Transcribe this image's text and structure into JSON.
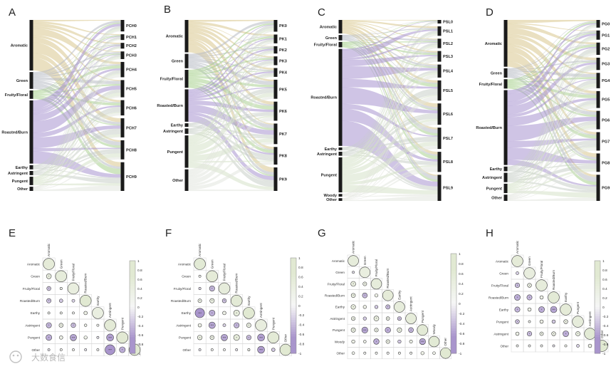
{
  "colors": {
    "aromatic": "#d8c78e",
    "green": "#b8bcc4",
    "fruity": "#a9d28f",
    "roasted": "#a893cf",
    "earthy": "#c9cfc9",
    "pungent": "#d6e2c9",
    "other": "#e2e6df",
    "bar": "#1a1a1a",
    "positive": "#e1e9d2",
    "negative": "#a995cc",
    "neutral": "#f4f4f4",
    "outline": "#444444"
  },
  "watermark": "大数食信",
  "chart_data": [
    {
      "panel": "A",
      "type": "sankey",
      "title": "A",
      "sources": [
        {
          "label": "Aromatic",
          "value": 24,
          "color": "aromatic"
        },
        {
          "label": "Green",
          "value": 8,
          "color": "green"
        },
        {
          "label": "Fruity/Floral",
          "value": 4,
          "color": "fruity"
        },
        {
          "label": "Roasted/Burn",
          "value": 30,
          "color": "roasted"
        },
        {
          "label": "Earthy",
          "value": 2,
          "color": "earthy"
        },
        {
          "label": "Astringent",
          "value": 2,
          "color": "earthy"
        },
        {
          "label": "Pungent",
          "value": 4,
          "color": "pungent"
        },
        {
          "label": "Other",
          "value": 2,
          "color": "other"
        }
      ],
      "targets": [
        {
          "label": "PCH0",
          "value": 6
        },
        {
          "label": "PCH1",
          "value": 3
        },
        {
          "label": "PCH2",
          "value": 3
        },
        {
          "label": "PCH3",
          "value": 4
        },
        {
          "label": "PCH4",
          "value": 8
        },
        {
          "label": "PCH5",
          "value": 9
        },
        {
          "label": "PCH6",
          "value": 8
        },
        {
          "label": "PCH7",
          "value": 10
        },
        {
          "label": "PCH8",
          "value": 10
        },
        {
          "label": "PCH9",
          "value": 15
        }
      ]
    },
    {
      "panel": "B",
      "type": "sankey",
      "title": "B",
      "sources": [
        {
          "label": "Aromatic",
          "value": 18,
          "color": "aromatic"
        },
        {
          "label": "Green",
          "value": 8,
          "color": "green"
        },
        {
          "label": "Fruity/Floral",
          "value": 10,
          "color": "fruity"
        },
        {
          "label": "Roasted/Burn",
          "value": 18,
          "color": "roasted"
        },
        {
          "label": "Earthy",
          "value": 2,
          "color": "earthy"
        },
        {
          "label": "Astringent",
          "value": 3,
          "color": "earthy"
        },
        {
          "label": "Pungent",
          "value": 18,
          "color": "pungent"
        },
        {
          "label": "Other",
          "value": 12,
          "color": "other"
        }
      ],
      "targets": [
        {
          "label": "PK0",
          "value": 8
        },
        {
          "label": "PK1",
          "value": 6
        },
        {
          "label": "PK2",
          "value": 5
        },
        {
          "label": "PK3",
          "value": 6
        },
        {
          "label": "PK4",
          "value": 6
        },
        {
          "label": "PK5",
          "value": 13
        },
        {
          "label": "PK6",
          "value": 13
        },
        {
          "label": "PK7",
          "value": 14
        },
        {
          "label": "PK8",
          "value": 12
        },
        {
          "label": "PK9",
          "value": 16
        }
      ]
    },
    {
      "panel": "C",
      "type": "sankey",
      "title": "C",
      "sources": [
        {
          "label": "Aromatic",
          "value": 10,
          "color": "aromatic"
        },
        {
          "label": "Green",
          "value": 4,
          "color": "green"
        },
        {
          "label": "Fruity/Floral",
          "value": 4,
          "color": "fruity"
        },
        {
          "label": "Roasted/Burn",
          "value": 72,
          "color": "roasted"
        },
        {
          "label": "Earthy",
          "value": 2,
          "color": "earthy"
        },
        {
          "label": "Astringent",
          "value": 3,
          "color": "earthy"
        },
        {
          "label": "Pungent",
          "value": 26,
          "color": "pungent"
        },
        {
          "label": "Woody",
          "value": 2,
          "color": "other"
        },
        {
          "label": "Other",
          "value": 2,
          "color": "other"
        }
      ],
      "targets": [
        {
          "label": "PSL0",
          "value": 3
        },
        {
          "label": "PSL1",
          "value": 8
        },
        {
          "label": "PSL2",
          "value": 8
        },
        {
          "label": "PSL3",
          "value": 9
        },
        {
          "label": "PSL4",
          "value": 11
        },
        {
          "label": "PSL5",
          "value": 17
        },
        {
          "label": "PSL6",
          "value": 18
        },
        {
          "label": "PSL7",
          "value": 18
        },
        {
          "label": "PSL8",
          "value": 17
        },
        {
          "label": "PSL9",
          "value": 22
        }
      ]
    },
    {
      "panel": "D",
      "type": "sankey",
      "title": "D",
      "sources": [
        {
          "label": "Aromatic",
          "value": 30,
          "color": "aromatic"
        },
        {
          "label": "Green",
          "value": 6,
          "color": "green"
        },
        {
          "label": "Fruity/Floral",
          "value": 6,
          "color": "fruity"
        },
        {
          "label": "Roasted/Burn",
          "value": 48,
          "color": "roasted"
        },
        {
          "label": "Earthy",
          "value": 3,
          "color": "earthy"
        },
        {
          "label": "Astringent",
          "value": 6,
          "color": "earthy"
        },
        {
          "label": "Pungent",
          "value": 6,
          "color": "pungent"
        },
        {
          "label": "Other",
          "value": 4,
          "color": "other"
        }
      ],
      "targets": [
        {
          "label": "PG0",
          "value": 5
        },
        {
          "label": "PG1",
          "value": 6
        },
        {
          "label": "PG2",
          "value": 8
        },
        {
          "label": "PG3",
          "value": 8
        },
        {
          "label": "PG4",
          "value": 10
        },
        {
          "label": "PG5",
          "value": 11
        },
        {
          "label": "PG6",
          "value": 12
        },
        {
          "label": "PG7",
          "value": 12
        },
        {
          "label": "PG8",
          "value": 12
        },
        {
          "label": "PG9",
          "value": 17
        }
      ]
    },
    {
      "panel": "E",
      "type": "heatmap",
      "title": "E",
      "labels": [
        "Aromatic",
        "Green",
        "Fruity/Floral",
        "Roasted/Burn",
        "Earthy",
        "Astringent",
        "Pungent",
        "Other"
      ],
      "lower": [
        [
          0.55
        ],
        [
          0.42,
          0.5
        ],
        [
          -0.35,
          0.2,
          0.42
        ],
        [
          -0.38,
          -0.3,
          -0.25,
          0.7
        ],
        [
          0.15,
          0.18,
          0.1,
          0.3,
          0.4
        ],
        [
          -0.45,
          0.35,
          -0.4,
          0.22,
          0.12,
          0.6
        ],
        [
          -0.5,
          0.3,
          -0.55,
          0.28,
          -0.12,
          -0.6,
          0.65
        ],
        [
          -0.12,
          0.1,
          0.14,
          -0.1,
          0.05,
          -0.85,
          -0.5,
          0.75
        ]
      ],
      "colorbar": {
        "min": -1,
        "max": 1,
        "ticks": [
          "1",
          "0.8",
          "0.6",
          "0.4",
          "0.2",
          "0",
          "-0.2",
          "-0.4",
          "-0.6",
          "-0.8",
          "-1"
        ]
      }
    },
    {
      "panel": "F",
      "type": "heatmap",
      "title": "F",
      "labels": [
        "Aromatic",
        "Green",
        "Fruity/Floral",
        "Roasted/Burn",
        "Earthy",
        "Astringent",
        "Pungent",
        "Other"
      ],
      "lower": [
        [
          0.62
        ],
        [
          0.1,
          0.55
        ],
        [
          -0.2,
          -0.45,
          0.5
        ],
        [
          0.32,
          0.38,
          -0.35,
          0.6
        ],
        [
          -0.8,
          -0.5,
          0.3,
          0.5,
          0.7
        ],
        [
          0.3,
          -0.55,
          -0.25,
          -0.45,
          0.38,
          0.45
        ],
        [
          0.4,
          0.35,
          -0.55,
          0.5,
          -0.4,
          -0.6,
          0.6
        ],
        [
          -0.12,
          0.08,
          0.05,
          -0.1,
          0.2,
          -0.6,
          -0.3,
          0.85
        ]
      ],
      "colorbar": {
        "min": -1,
        "max": 1,
        "ticks": [
          "1",
          "0.8",
          "0.6",
          "0.4",
          "0.2",
          "0",
          "-0.2",
          "-0.4",
          "-0.6",
          "-0.8",
          "-1"
        ]
      }
    },
    {
      "panel": "G",
      "type": "heatmap",
      "title": "G",
      "labels": [
        "Aromatic",
        "Green",
        "Fruity/Floral",
        "Roasted/Burn",
        "Earthy",
        "Astringent",
        "Pungent",
        "Woody",
        "Other"
      ],
      "lower": [
        [
          0.5
        ],
        [
          -0.15,
          0.42
        ],
        [
          0.45,
          0.35,
          0.5
        ],
        [
          0.38,
          -0.45,
          0.3,
          0.55
        ],
        [
          0.42,
          0.3,
          -0.3,
          -0.4,
          0.5
        ],
        [
          0.35,
          -0.3,
          0.45,
          0.32,
          -0.35,
          0.52
        ],
        [
          0.4,
          -0.55,
          0.35,
          -0.5,
          0.42,
          -0.45,
          0.6
        ],
        [
          0.3,
          0.25,
          -0.5,
          0.35,
          -0.3,
          0.28,
          -0.55,
          0.62
        ],
        [
          0.25,
          0.1,
          0.12,
          0.08,
          0.15,
          0.1,
          0.3,
          0.25,
          0.7
        ]
      ],
      "colorbar": {
        "min": -1,
        "max": 1,
        "ticks": [
          "1",
          "0.8",
          "0.6",
          "0.4",
          "0.2",
          "0",
          "-0.2",
          "-0.4",
          "-0.6",
          "-0.8",
          "-1"
        ]
      }
    },
    {
      "panel": "H",
      "type": "heatmap",
      "title": "H",
      "labels": [
        "Aromatic",
        "Green",
        "Fruity/Floral",
        "Roasted/Burn",
        "Earthy",
        "Pungent",
        "Astringent",
        "Other"
      ],
      "lower": [
        [
          0.55
        ],
        [
          -0.25,
          0.45
        ],
        [
          -0.4,
          0.35,
          0.5
        ],
        [
          -0.5,
          -0.45,
          0.3,
          0.6
        ],
        [
          -0.45,
          0.3,
          -0.5,
          -0.55,
          0.55
        ],
        [
          -0.35,
          0.12,
          0.3,
          -0.3,
          0.35,
          0.5
        ],
        [
          0.3,
          -0.4,
          0.32,
          0.35,
          -0.5,
          0.38,
          0.62
        ],
        [
          0.12,
          0.08,
          0.1,
          -0.12,
          0.2,
          -0.25,
          0.3,
          0.8
        ]
      ],
      "colorbar": {
        "min": -1,
        "max": 1,
        "ticks": [
          "1",
          "0.8",
          "0.6",
          "0.4",
          "0.2",
          "0",
          "-0.2",
          "-0.4",
          "-0.6",
          "-0.8",
          "-1"
        ]
      }
    }
  ]
}
